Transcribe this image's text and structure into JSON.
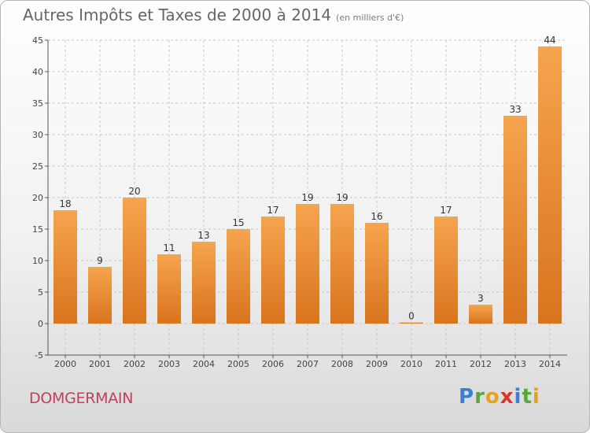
{
  "title": "Autres Impôts et Taxes de 2000 à 2014",
  "subtitle": "(en milliers d'€)",
  "town": "DOMGERMAIN",
  "logo": {
    "text": "Proxiti",
    "letters": [
      "P",
      "r",
      "o",
      "x",
      "i",
      "t",
      "i"
    ]
  },
  "colors": {
    "bar_light": "#f6a44e",
    "bar_dark": "#d9741e",
    "axis": "#555555",
    "grid": "#c8c8c8",
    "town": "#c2415a"
  },
  "chart_data": {
    "type": "bar",
    "categories": [
      "2000",
      "2001",
      "2002",
      "2003",
      "2004",
      "2005",
      "2006",
      "2007",
      "2008",
      "2009",
      "2010",
      "2011",
      "2012",
      "2013",
      "2014"
    ],
    "values": [
      18,
      9,
      20,
      11,
      13,
      15,
      17,
      19,
      19,
      16,
      0,
      17,
      3,
      33,
      44
    ],
    "data_labels": [
      "18",
      "9",
      "20",
      "11",
      "13",
      "15",
      "17",
      "19",
      "19",
      "16",
      "0",
      "17",
      "3",
      "33",
      "44"
    ],
    "yticks": [
      -5,
      0,
      5,
      10,
      15,
      20,
      25,
      30,
      35,
      40,
      45
    ],
    "ylim": [
      -5,
      45
    ],
    "xlabel": "",
    "ylabel": "",
    "grid": "horizontal dashed",
    "legend": "none"
  }
}
